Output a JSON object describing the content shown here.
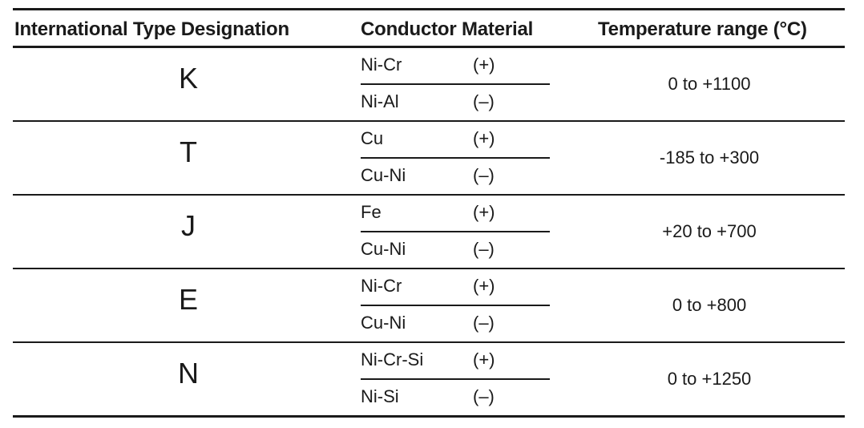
{
  "headers": {
    "type": "International Type Designation",
    "material": "Conductor Material",
    "temperature": "Temperature range (°C)"
  },
  "rows": [
    {
      "type": "K",
      "pos_material": "Ni-Cr",
      "pos_polarity": "(+)",
      "neg_material": "Ni-Al",
      "neg_polarity": "(–)",
      "temperature": "0 to +1100"
    },
    {
      "type": "T",
      "pos_material": "Cu",
      "pos_polarity": "(+)",
      "neg_material": "Cu-Ni",
      "neg_polarity": "(–)",
      "temperature": "-185 to +300"
    },
    {
      "type": "J",
      "pos_material": "Fe",
      "pos_polarity": "(+)",
      "neg_material": "Cu-Ni",
      "neg_polarity": "(–)",
      "temperature": "+20 to +700"
    },
    {
      "type": "E",
      "pos_material": "Ni-Cr",
      "pos_polarity": "(+)",
      "neg_material": "Cu-Ni",
      "neg_polarity": "(–)",
      "temperature": "0 to +800"
    },
    {
      "type": "N",
      "pos_material": "Ni-Cr-Si",
      "pos_polarity": "(+)",
      "neg_material": "Ni-Si",
      "neg_polarity": "(–)",
      "temperature": "0 to +1250"
    }
  ]
}
